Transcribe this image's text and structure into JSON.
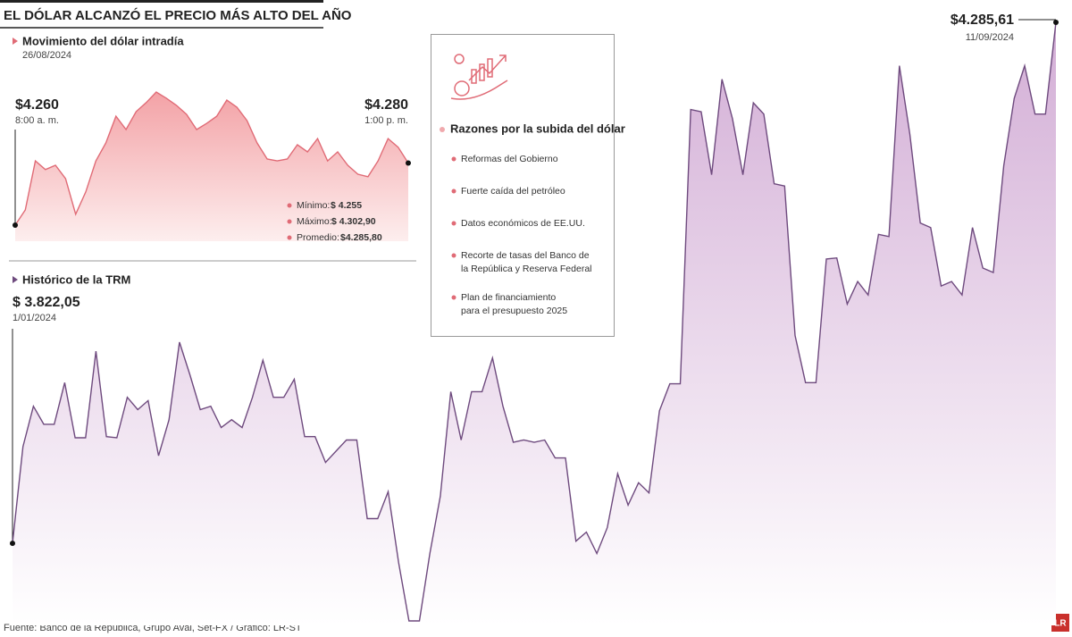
{
  "title": "EL DÓLAR ALCANZÓ EL PRECIO MÁS ALTO DEL AÑO",
  "source": "Fuente: Banco de la República, Grupo Aval, Set-FX / Gráfico: LR-ST",
  "logo": "LR",
  "chart_data": [
    {
      "type": "area",
      "subtitle": "Movimiento del dólar intradía",
      "date": "26/08/2024",
      "start_label": "$4.260",
      "start_time": "8:00 a. m.",
      "end_label": "$4.280",
      "end_time": "1:00 p. m.",
      "color": "#e06b76",
      "values": [
        4260,
        4264.9,
        4280.7,
        4277.9,
        4279.3,
        4275.0,
        4263.5,
        4270.7,
        4280.7,
        4286.5,
        4295.1,
        4290.8,
        4296.6,
        4299.5,
        4302.9,
        4300.9,
        4298.6,
        4295.7,
        4290.8,
        4292.8,
        4295.1,
        4300.3,
        4298.0,
        4293.7,
        4286.5,
        4281.3,
        4280.7,
        4281.3,
        4285.9,
        4283.6,
        4287.9,
        4280.7,
        4283.6,
        4279.3,
        4276.4,
        4275.6,
        4280.7,
        4287.9,
        4285.1,
        4280
      ],
      "stats": [
        {
          "name": "Mínimo:",
          "value": 4255,
          "value_label": "$ 4.255"
        },
        {
          "name": "Máximo:",
          "value": 4302.9,
          "value_label": "$ 4.302,90"
        },
        {
          "name": "Promedio:",
          "value": 4285.8,
          "value_label": "$4.285,80"
        }
      ]
    },
    {
      "type": "area",
      "subtitle": "Histórico de la TRM",
      "start_label": "$ 3.822,05",
      "start_date": "1/01/2024",
      "end_label": "$4.285,61",
      "end_date": "11/09/2024",
      "color": "#6e4a7e",
      "values": [
        3822.05,
        3908,
        3944,
        3928,
        3928,
        3965,
        3916,
        3916,
        3993,
        3917,
        3916,
        3952,
        3941,
        3949,
        3900,
        3932,
        4001,
        3972,
        3941,
        3944,
        3925,
        3932,
        3925,
        3952,
        3985,
        3952,
        3952,
        3968,
        3917,
        3917,
        3894,
        3904,
        3914,
        3914,
        3844,
        3844,
        3868,
        3805,
        3753,
        3753,
        3813,
        3864,
        3957,
        3914,
        3957,
        3957,
        3987,
        3944,
        3912,
        3914,
        3912,
        3914,
        3898,
        3898,
        3824,
        3832,
        3813,
        3836,
        3884,
        3856,
        3876,
        3867,
        3940,
        3964,
        3964,
        4208,
        4206,
        4150,
        4235,
        4200,
        4150,
        4214,
        4204,
        4142,
        4140,
        4007,
        3965,
        3965,
        4075,
        4076,
        4035,
        4055,
        4043,
        4097,
        4095,
        4247,
        4186,
        4107,
        4103,
        4051,
        4055,
        4043,
        4103,
        4067,
        4063,
        4158,
        4218,
        4247,
        4204,
        4204,
        4285.61
      ]
    }
  ],
  "reasons": {
    "title": "Razones por la subida del dólar",
    "items": [
      "Reformas del Gobierno",
      "Fuerte caída del petróleo",
      "Datos económicos de EE.UU.",
      [
        "Recorte de tasas del Banco de",
        "la República y Reserva Federal"
      ],
      [
        "Plan de financiamiento",
        "para el presupuesto 2025"
      ]
    ]
  }
}
